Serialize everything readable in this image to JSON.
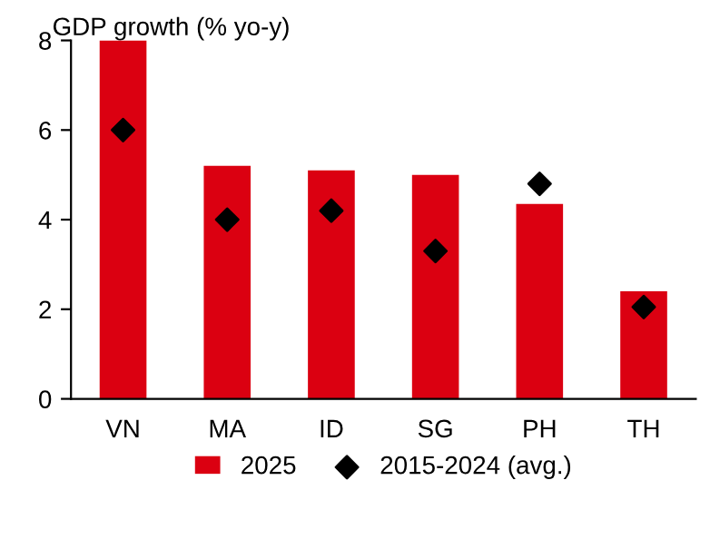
{
  "chart_data": {
    "type": "bar",
    "ylabel": "GDP growth (% yo-y)",
    "categories": [
      "VN",
      "MA",
      "ID",
      "SG",
      "PH",
      "TH"
    ],
    "series": [
      {
        "name": "2025",
        "color": "#db0011",
        "values": [
          8.0,
          5.2,
          5.1,
          5.0,
          4.35,
          2.4
        ]
      },
      {
        "name": "2015-2024 (avg.)",
        "type": "scatter",
        "color": "#000000",
        "marker": "diamond",
        "values": [
          6.0,
          4.0,
          4.2,
          3.3,
          4.8,
          2.05
        ]
      }
    ],
    "ylim": [
      0,
      8
    ],
    "yticks": [
      0,
      2,
      4,
      6,
      8
    ],
    "grid": false,
    "legend": "bottom"
  }
}
